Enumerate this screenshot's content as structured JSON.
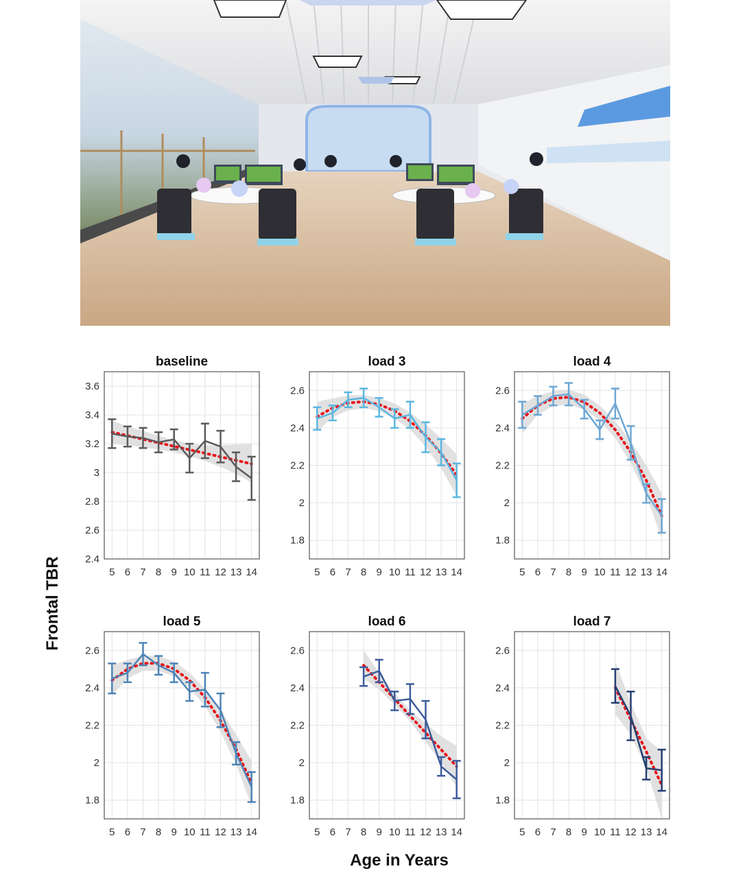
{
  "figure": {
    "ylabel": "Frontal TBR",
    "xlabel": "Age in Years",
    "fit_color": "#e8141c",
    "band_color": "#d9d9d9"
  },
  "chart_data": [
    {
      "type": "line",
      "title": "baseline",
      "color": "#5a5a5a",
      "xlim": [
        4.5,
        14.5
      ],
      "ylim": [
        2.4,
        3.7
      ],
      "xticks": [
        5,
        6,
        7,
        8,
        9,
        10,
        11,
        12,
        13,
        14
      ],
      "xtick_labels": [
        "5",
        "6",
        "7",
        "8",
        "9",
        "10",
        "11",
        "12",
        "13",
        "14"
      ],
      "yticks": [
        2.4,
        2.6,
        2.8,
        3.0,
        3.2,
        3.4,
        3.6
      ],
      "ytick_labels": [
        "2.4",
        "2.6",
        "2.8",
        "3",
        "3.2",
        "3.4",
        "3.6"
      ],
      "grid": true,
      "x": [
        5,
        6,
        7,
        8,
        9,
        10,
        11,
        12,
        13,
        14
      ],
      "mean": [
        3.27,
        3.25,
        3.24,
        3.21,
        3.23,
        3.1,
        3.22,
        3.18,
        3.04,
        2.96
      ],
      "error": [
        0.1,
        0.07,
        0.07,
        0.07,
        0.07,
        0.1,
        0.12,
        0.11,
        0.1,
        0.15
      ],
      "fit": [
        3.28,
        3.256,
        3.231,
        3.207,
        3.182,
        3.158,
        3.134,
        3.109,
        3.085,
        3.06
      ],
      "ci_lower": [
        3.2,
        3.19,
        3.175,
        3.16,
        3.14,
        3.115,
        3.08,
        3.04,
        2.99,
        2.93
      ],
      "ci_upper": [
        3.36,
        3.32,
        3.29,
        3.255,
        3.225,
        3.2,
        3.19,
        3.19,
        3.195,
        3.2
      ]
    },
    {
      "type": "line",
      "title": "load 3",
      "color": "#5bb6df",
      "xlim": [
        4.5,
        14.5
      ],
      "ylim": [
        1.7,
        2.7
      ],
      "xticks": [
        5,
        6,
        7,
        8,
        9,
        10,
        11,
        12,
        13,
        14
      ],
      "xtick_labels": [
        "5",
        "6",
        "7",
        "8",
        "9",
        "10",
        "11",
        "12",
        "13",
        "14"
      ],
      "yticks": [
        1.8,
        2.0,
        2.2,
        2.4,
        2.6
      ],
      "ytick_labels": [
        "1.8",
        "2",
        "2.2",
        "2.4",
        "2.6"
      ],
      "grid": true,
      "x": [
        5,
        6,
        7,
        8,
        9,
        10,
        11,
        12,
        13,
        14
      ],
      "mean": [
        2.45,
        2.48,
        2.55,
        2.56,
        2.51,
        2.45,
        2.47,
        2.35,
        2.27,
        2.12
      ],
      "error": [
        0.06,
        0.04,
        0.04,
        0.05,
        0.05,
        0.05,
        0.07,
        0.08,
        0.07,
        0.09
      ],
      "fit": [
        2.46,
        2.507,
        2.533,
        2.54,
        2.525,
        2.491,
        2.436,
        2.36,
        2.264,
        2.148
      ],
      "ci_lower": [
        2.38,
        2.457,
        2.493,
        2.505,
        2.49,
        2.451,
        2.391,
        2.3,
        2.184,
        2.038
      ],
      "ci_upper": [
        2.54,
        2.557,
        2.573,
        2.575,
        2.56,
        2.531,
        2.481,
        2.42,
        2.344,
        2.258
      ]
    },
    {
      "type": "line",
      "title": "load 4",
      "color": "#6da6d4",
      "xlim": [
        4.5,
        14.5
      ],
      "ylim": [
        1.7,
        2.7
      ],
      "xticks": [
        5,
        6,
        7,
        8,
        9,
        10,
        11,
        12,
        13,
        14
      ],
      "xtick_labels": [
        "5",
        "6",
        "7",
        "8",
        "9",
        "10",
        "11",
        "12",
        "13",
        "14"
      ],
      "yticks": [
        1.8,
        2.0,
        2.2,
        2.4,
        2.6
      ],
      "ytick_labels": [
        "1.8",
        "2",
        "2.2",
        "2.4",
        "2.6"
      ],
      "grid": true,
      "x": [
        5,
        6,
        7,
        8,
        9,
        10,
        11,
        12,
        13,
        14
      ],
      "mean": [
        2.47,
        2.52,
        2.57,
        2.58,
        2.5,
        2.39,
        2.53,
        2.32,
        2.05,
        1.93
      ],
      "error": [
        0.07,
        0.05,
        0.05,
        0.06,
        0.05,
        0.05,
        0.08,
        0.09,
        0.05,
        0.09
      ],
      "fit": [
        2.45,
        2.52,
        2.557,
        2.564,
        2.538,
        2.48,
        2.39,
        2.27,
        2.12,
        1.93
      ],
      "ci_lower": [
        2.37,
        2.47,
        2.517,
        2.524,
        2.498,
        2.44,
        2.345,
        2.21,
        2.04,
        1.81
      ],
      "ci_upper": [
        2.53,
        2.57,
        2.597,
        2.604,
        2.578,
        2.52,
        2.435,
        2.33,
        2.2,
        2.05
      ]
    },
    {
      "type": "line",
      "title": "load 5",
      "color": "#4d84b6",
      "xlim": [
        4.5,
        14.5
      ],
      "ylim": [
        1.7,
        2.7
      ],
      "xticks": [
        5,
        6,
        7,
        8,
        9,
        10,
        11,
        12,
        13,
        14
      ],
      "xtick_labels": [
        "5",
        "6",
        "7",
        "8",
        "9",
        "10",
        "11",
        "12",
        "13",
        "14"
      ],
      "yticks": [
        1.8,
        2.0,
        2.2,
        2.4,
        2.6
      ],
      "ytick_labels": [
        "1.8",
        "2",
        "2.2",
        "2.4",
        "2.6"
      ],
      "grid": true,
      "x": [
        5,
        6,
        7,
        8,
        9,
        10,
        11,
        12,
        13,
        14
      ],
      "mean": [
        2.45,
        2.48,
        2.58,
        2.52,
        2.48,
        2.38,
        2.39,
        2.28,
        2.05,
        1.87
      ],
      "error": [
        0.08,
        0.05,
        0.06,
        0.05,
        0.05,
        0.05,
        0.09,
        0.09,
        0.06,
        0.08
      ],
      "fit": [
        2.44,
        2.5,
        2.531,
        2.531,
        2.501,
        2.44,
        2.348,
        2.225,
        2.072,
        1.89
      ],
      "ci_lower": [
        2.36,
        2.45,
        2.491,
        2.491,
        2.461,
        2.4,
        2.303,
        2.165,
        1.992,
        1.77
      ],
      "ci_upper": [
        2.52,
        2.55,
        2.571,
        2.571,
        2.541,
        2.48,
        2.393,
        2.285,
        2.152,
        2.01
      ]
    },
    {
      "type": "line",
      "title": "load 6",
      "color": "#3c5b9c",
      "xlim": [
        4.5,
        14.5
      ],
      "ylim": [
        1.7,
        2.7
      ],
      "xticks": [
        5,
        6,
        7,
        8,
        9,
        10,
        11,
        12,
        13,
        14
      ],
      "xtick_labels": [
        "5",
        "6",
        "7",
        "8",
        "9",
        "10",
        "11",
        "12",
        "13",
        "14"
      ],
      "yticks": [
        1.8,
        2.0,
        2.2,
        2.4,
        2.6
      ],
      "ytick_labels": [
        "1.8",
        "2",
        "2.2",
        "2.4",
        "2.6"
      ],
      "grid": true,
      "x": [
        8,
        9,
        10,
        11,
        12,
        13,
        14
      ],
      "mean": [
        2.46,
        2.49,
        2.33,
        2.34,
        2.23,
        1.98,
        1.91
      ],
      "error": [
        0.05,
        0.06,
        0.05,
        0.08,
        0.1,
        0.05,
        0.1
      ],
      "fit": [
        2.52,
        2.43,
        2.34,
        2.25,
        2.16,
        2.07,
        1.98
      ],
      "ci_lower": [
        2.45,
        2.39,
        2.31,
        2.22,
        2.11,
        2.0,
        1.87
      ],
      "ci_upper": [
        2.6,
        2.48,
        2.37,
        2.28,
        2.21,
        2.14,
        2.09
      ]
    },
    {
      "type": "line",
      "title": "load 7",
      "color": "#263f72",
      "xlim": [
        4.5,
        14.5
      ],
      "ylim": [
        1.7,
        2.7
      ],
      "xticks": [
        5,
        6,
        7,
        8,
        9,
        10,
        11,
        12,
        13,
        14
      ],
      "xtick_labels": [
        "5",
        "6",
        "7",
        "8",
        "9",
        "10",
        "11",
        "12",
        "13",
        "14"
      ],
      "yticks": [
        1.8,
        2.0,
        2.2,
        2.4,
        2.6
      ],
      "ytick_labels": [
        "1.8",
        "2",
        "2.2",
        "2.4",
        "2.6"
      ],
      "grid": true,
      "x": [
        11,
        12,
        13,
        14
      ],
      "mean": [
        2.41,
        2.25,
        1.97,
        1.96
      ],
      "error": [
        0.09,
        0.13,
        0.06,
        0.11
      ],
      "fit": [
        2.4,
        2.23,
        2.06,
        1.88
      ],
      "ci_lower": [
        2.26,
        2.15,
        1.97,
        1.7
      ],
      "ci_upper": [
        2.54,
        2.32,
        2.13,
        2.06
      ]
    }
  ]
}
